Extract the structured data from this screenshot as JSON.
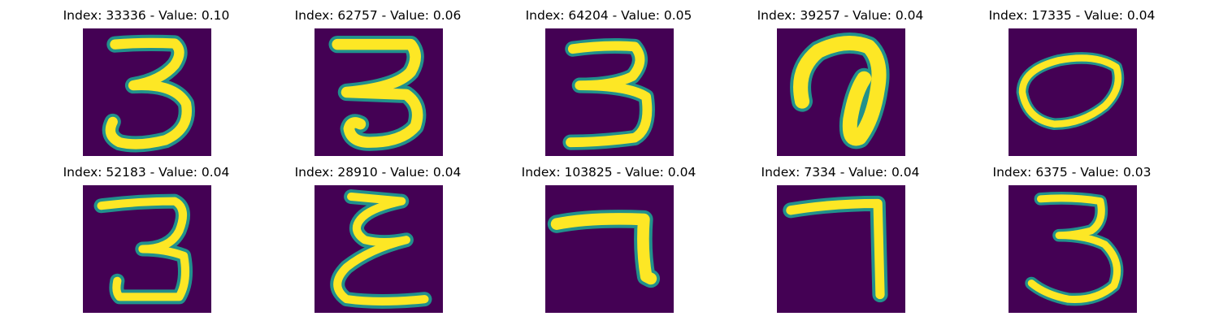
{
  "panels": [
    {
      "title": "Index: 33336 - Value: 0.10",
      "digit": "3"
    },
    {
      "title": "Index: 62757 - Value: 0.06",
      "digit": "3"
    },
    {
      "title": "Index: 64204 - Value: 0.05",
      "digit": "3"
    },
    {
      "title": "Index: 39257 - Value: 0.04",
      "digit": "looped stroke"
    },
    {
      "title": "Index: 17335 - Value: 0.04",
      "digit": "0"
    },
    {
      "title": "Index: 52183 - Value: 0.04",
      "digit": "3"
    },
    {
      "title": "Index: 28910 - Value: 0.04",
      "digit": "reversed 3"
    },
    {
      "title": "Index: 103825 - Value: 0.04",
      "digit": "7"
    },
    {
      "title": "Index: 7334 - Value: 0.04",
      "digit": "7"
    },
    {
      "title": "Index: 6375 - Value: 0.03",
      "digit": "3"
    }
  ],
  "colors": {
    "background": "#440154",
    "stroke_edge": "#21918c",
    "stroke_mid": "#5ec962",
    "stroke_core": "#fde725"
  }
}
